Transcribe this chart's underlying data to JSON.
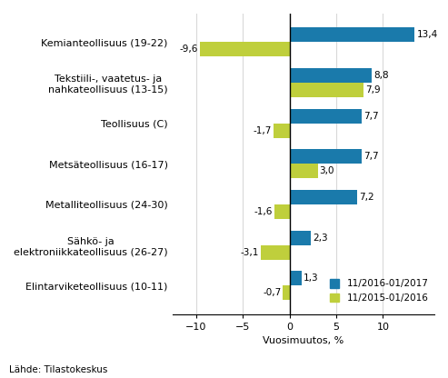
{
  "categories": [
    "Kemianteollisuus (19-22)",
    "Tekstiili-, vaatetus- ja\nnahkateollisuus (13-15)",
    "Teollisuus (C)",
    "Metsäteollisuus (16-17)",
    "Metalliteollisuus (24-30)",
    "Sähkö- ja\nelektroniikkateollisuus (26-27)",
    "Elintarviketeollisuus (10-11)"
  ],
  "values_2017": [
    13.4,
    8.8,
    7.7,
    7.7,
    7.2,
    2.3,
    1.3
  ],
  "values_2016": [
    -9.6,
    7.9,
    -1.7,
    3.0,
    -1.6,
    -3.1,
    -0.7
  ],
  "labels_2017": [
    "13,4",
    "8,8",
    "7,7",
    "7,7",
    "7,2",
    "2,3",
    "1,3"
  ],
  "labels_2016": [
    "-9,6",
    "7,9",
    "-1,7",
    "3,0",
    "-1,6",
    "-3,1",
    "-0,7"
  ],
  "color_2017": "#1a7aab",
  "color_2016": "#bfcf3c",
  "xlabel": "Vuosimuutos, %",
  "legend_2017": "11/2016-01/2017",
  "legend_2016": "11/2015-01/2016",
  "xlim": [
    -12.5,
    15.5
  ],
  "xticks": [
    -10,
    -5,
    0,
    5,
    10
  ],
  "source": "Lähde: Tilastokeskus",
  "bar_height": 0.36,
  "grid_color": "#d9d9d9",
  "spine_color": "#000000"
}
